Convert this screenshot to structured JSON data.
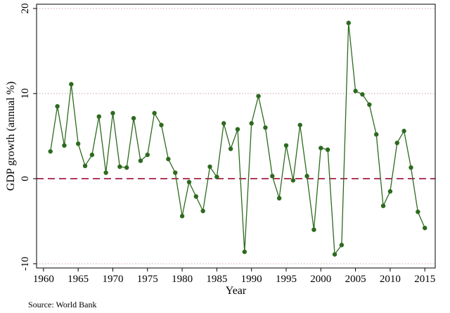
{
  "chart_data": {
    "type": "line",
    "title": "",
    "xlabel": "Year",
    "ylabel": "GDP growth (annual %)",
    "xlim": [
      1959,
      2016.5
    ],
    "ylim": [
      -10.5,
      20.5
    ],
    "x_ticks": [
      1960,
      1965,
      1970,
      1975,
      1980,
      1985,
      1990,
      1995,
      2000,
      2005,
      2010,
      2015
    ],
    "y_ticks": [
      -10,
      0,
      10,
      20
    ],
    "gridlines_y": [
      -10,
      10,
      20
    ],
    "reference_line_y": 0,
    "colors": {
      "series": "#2d6a1f",
      "grid": "#c9a0a8",
      "reference": "#b03a5a",
      "axis": "#000000"
    },
    "series": [
      {
        "x": [
          1961,
          1962,
          1963,
          1964,
          1965,
          1966,
          1967,
          1968,
          1969,
          1970,
          1971,
          1972,
          1973,
          1974,
          1975,
          1976,
          1977,
          1978,
          1979,
          1980,
          1981,
          1982,
          1983,
          1984,
          1985,
          1986,
          1987,
          1988,
          1989,
          1990,
          1991,
          1992,
          1993,
          1994,
          1995,
          1996,
          1997,
          1998,
          1999,
          2000,
          2001,
          2002,
          2003,
          2004,
          2005,
          2006,
          2007,
          2008,
          2009,
          2010,
          2011,
          2012,
          2013,
          2014,
          2015
        ],
        "y": [
          3.2,
          8.5,
          3.9,
          11.1,
          4.1,
          1.5,
          2.8,
          7.3,
          0.7,
          7.7,
          1.4,
          1.3,
          7.1,
          2.1,
          2.8,
          7.7,
          6.3,
          2.3,
          0.7,
          -4.4,
          -0.4,
          -2.1,
          -3.8,
          1.4,
          0.2,
          6.5,
          3.5,
          5.8,
          -8.6,
          6.5,
          9.7,
          6.0,
          0.3,
          -2.3,
          3.9,
          -0.2,
          6.3,
          0.3,
          -6.0,
          3.6,
          3.4,
          -8.9,
          -7.8,
          18.3,
          10.3,
          9.9,
          8.7,
          5.2,
          -3.2,
          -1.5,
          4.2,
          5.6,
          1.3,
          -3.9,
          -5.8
        ]
      }
    ],
    "source_note": "Source: World Bank"
  }
}
